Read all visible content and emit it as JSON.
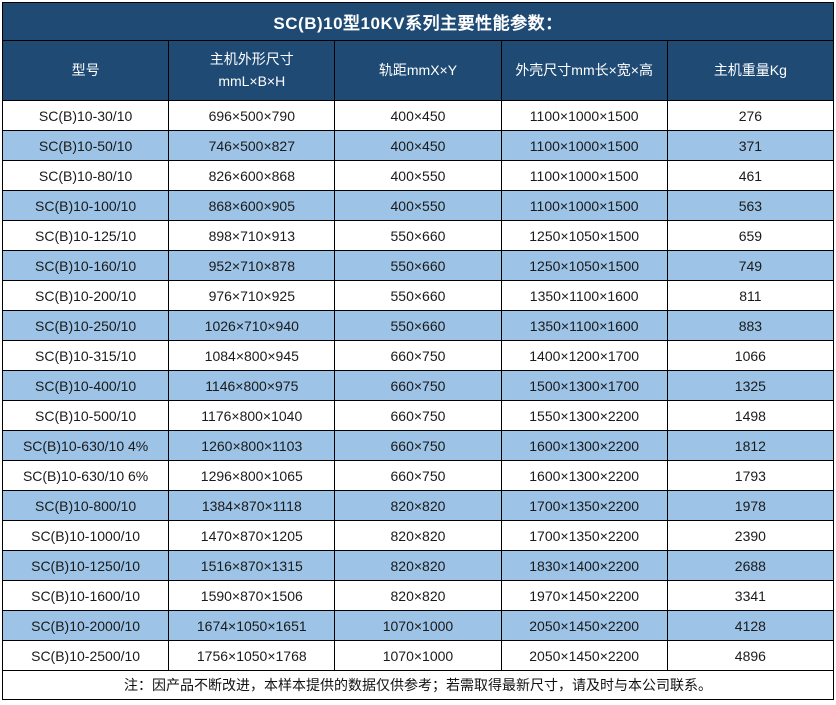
{
  "title": "SC(B)10型10KV系列主要性能参数：",
  "header": {
    "model": "型号",
    "dims_line1": "主机外形尺寸",
    "dims_line2": "mmL×B×H",
    "rail": "轨距mmX×Y",
    "shell": "外壳尺寸mm长×宽×高",
    "weight": "主机重量Kg"
  },
  "rows": [
    {
      "model": "SC(B)10-30/10",
      "dims": "696×500×790",
      "rail": "400×450",
      "shell": "1100×1000×1500",
      "weight": "276"
    },
    {
      "model": "SC(B)10-50/10",
      "dims": "746×500×827",
      "rail": "400×450",
      "shell": "1100×1000×1500",
      "weight": "371"
    },
    {
      "model": "SC(B)10-80/10",
      "dims": "826×600×868",
      "rail": "400×550",
      "shell": "1100×1000×1500",
      "weight": "461"
    },
    {
      "model": "SC(B)10-100/10",
      "dims": "868×600×905",
      "rail": "400×550",
      "shell": "1100×1000×1500",
      "weight": "563"
    },
    {
      "model": "SC(B)10-125/10",
      "dims": "898×710×913",
      "rail": "550×660",
      "shell": "1250×1050×1500",
      "weight": "659"
    },
    {
      "model": "SC(B)10-160/10",
      "dims": "952×710×878",
      "rail": "550×660",
      "shell": "1250×1050×1500",
      "weight": "749"
    },
    {
      "model": "SC(B)10-200/10",
      "dims": "976×710×925",
      "rail": "550×660",
      "shell": "1350×1100×1600",
      "weight": "811"
    },
    {
      "model": "SC(B)10-250/10",
      "dims": "1026×710×940",
      "rail": "550×660",
      "shell": "1350×1100×1600",
      "weight": "883"
    },
    {
      "model": "SC(B)10-315/10",
      "dims": "1084×800×945",
      "rail": "660×750",
      "shell": "1400×1200×1700",
      "weight": "1066"
    },
    {
      "model": "SC(B)10-400/10",
      "dims": "1146×800×975",
      "rail": "660×750",
      "shell": "1500×1300×1700",
      "weight": "1325"
    },
    {
      "model": "SC(B)10-500/10",
      "dims": "1176×800×1040",
      "rail": "660×750",
      "shell": "1550×1300×2200",
      "weight": "1498"
    },
    {
      "model": "SC(B)10-630/10 4%",
      "dims": "1260×800×1103",
      "rail": "660×750",
      "shell": "1600×1300×2200",
      "weight": "1812"
    },
    {
      "model": "SC(B)10-630/10 6%",
      "dims": "1296×800×1065",
      "rail": "660×750",
      "shell": "1600×1300×2200",
      "weight": "1793"
    },
    {
      "model": "SC(B)10-800/10",
      "dims": "1384×870×1118",
      "rail": "820×820",
      "shell": "1700×1350×2200",
      "weight": "1978"
    },
    {
      "model": "SC(B)10-1000/10",
      "dims": "1470×870×1205",
      "rail": "820×820",
      "shell": "1700×1350×2200",
      "weight": "2390"
    },
    {
      "model": "SC(B)10-1250/10",
      "dims": "1516×870×1315",
      "rail": "820×820",
      "shell": "1830×1400×2200",
      "weight": "2688"
    },
    {
      "model": "SC(B)10-1600/10",
      "dims": "1590×870×1506",
      "rail": "820×820",
      "shell": "1970×1450×2200",
      "weight": "3341"
    },
    {
      "model": "SC(B)10-2000/10",
      "dims": "1674×1050×1651",
      "rail": "1070×1000",
      "shell": "2050×1450×2200",
      "weight": "4128"
    },
    {
      "model": "SC(B)10-2500/10",
      "dims": "1756×1050×1768",
      "rail": "1070×1000",
      "shell": "2050×1450×2200",
      "weight": "4896"
    }
  ],
  "note": "注：因产品不断改进，本样本提供的数据仅供参考；若需取得最新尺寸，请及时与本公司联系。",
  "colors": {
    "navy": "#1E4A74",
    "row_alt_blue": "#9DC3E6",
    "grid_line": "#000000",
    "header_text": "#FFFFFF",
    "body_text": "#1A1A1A"
  }
}
